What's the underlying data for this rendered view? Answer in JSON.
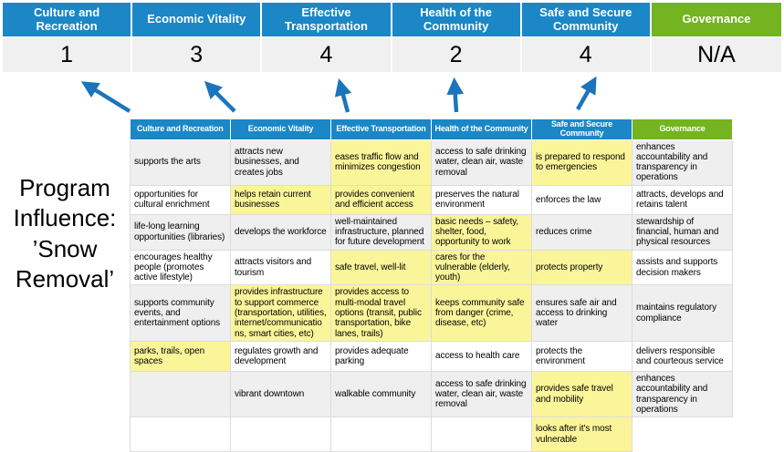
{
  "title": "Program Influence: ’Snow Removal’",
  "colors": {
    "header_blue": "#1B87C6",
    "header_green": "#73B420",
    "highlight_yellow": "#FBF59A",
    "row_alt_gray": "#EFEFEF",
    "score_row_gray": "#F0F0F0",
    "arrow_blue": "#1B75BC"
  },
  "scorecard": {
    "columns": [
      {
        "label": "Culture and Recreation",
        "score": "1"
      },
      {
        "label": "Economic Vitality",
        "score": "3"
      },
      {
        "label": "Effective Transportation",
        "score": "4"
      },
      {
        "label": "Health of the Community",
        "score": "2"
      },
      {
        "label": "Safe and Secure Community",
        "score": "4"
      },
      {
        "label": "Governance",
        "score": "N/A"
      }
    ]
  },
  "matrix": {
    "headers": [
      {
        "label": "Culture and Recreation",
        "green": false
      },
      {
        "label": "Economic Vitality",
        "green": false
      },
      {
        "label": "Effective Transportation",
        "green": false
      },
      {
        "label": "Health of the Community",
        "green": false
      },
      {
        "label": "Safe and Secure\nCommunity",
        "green": false
      },
      {
        "label": "Governance",
        "green": true
      }
    ],
    "rows": [
      [
        {
          "text": "supports the arts",
          "highlight": false
        },
        {
          "text": "attracts new businesses, and creates jobs",
          "highlight": false
        },
        {
          "text": "eases traffic flow and minimizes congestion",
          "highlight": true
        },
        {
          "text": "access to safe drinking water, clean air, waste removal",
          "highlight": false
        },
        {
          "text": "is prepared to respond to emergencies",
          "highlight": true
        },
        {
          "text": "enhances accountability and transparency in operations",
          "highlight": false
        }
      ],
      [
        {
          "text": "opportunities for cultural enrichment",
          "highlight": false
        },
        {
          "text": "helps retain current businesses",
          "highlight": true
        },
        {
          "text": "provides convenient and efficient access",
          "highlight": true
        },
        {
          "text": "preserves the natural environment",
          "highlight": false
        },
        {
          "text": "enforces the law",
          "highlight": false
        },
        {
          "text": "attracts, develops and retains talent",
          "highlight": false
        }
      ],
      [
        {
          "text": "life-long learning opportunities (libraries)",
          "highlight": false
        },
        {
          "text": "develops the workforce",
          "highlight": false
        },
        {
          "text": "well-maintained infrastructure, planned for future development",
          "highlight": false
        },
        {
          "text": "basic needs – safety, shelter, food, opportunity to work",
          "highlight": true
        },
        {
          "text": "reduces crime",
          "highlight": false
        },
        {
          "text": "stewardship of financial, human and physical resources",
          "highlight": false
        }
      ],
      [
        {
          "text": "encourages healthy people (promotes active lifestyle)",
          "highlight": false
        },
        {
          "text": "attracts visitors and tourism",
          "highlight": false
        },
        {
          "text": "safe travel, well-lit",
          "highlight": true
        },
        {
          "text": "cares for the vulnerable (elderly, youth)",
          "highlight": true
        },
        {
          "text": "protects property",
          "highlight": true
        },
        {
          "text": "assists and supports decision makers",
          "highlight": false
        }
      ],
      [
        {
          "text": "supports community events, and entertainment options",
          "highlight": false
        },
        {
          "text": "provides infrastructure to support commerce (transportation, utilities, internet/communications, smart cities, etc)",
          "highlight": true
        },
        {
          "text": "provides access to multi-modal travel options (transit, public transportation, bike lanes, trails)",
          "highlight": true
        },
        {
          "text": "keeps community safe from danger (crime, disease, etc)",
          "highlight": true
        },
        {
          "text": "ensures safe air and access to drinking water",
          "highlight": false
        },
        {
          "text": "maintains regulatory compliance",
          "highlight": false
        }
      ],
      [
        {
          "text": "parks, trails, open spaces",
          "highlight": true
        },
        {
          "text": "regulates growth and development",
          "highlight": false
        },
        {
          "text": "provides adequate parking",
          "highlight": false
        },
        {
          "text": "access to health care",
          "highlight": false
        },
        {
          "text": "protects the environment",
          "highlight": false
        },
        {
          "text": "delivers responsible and courteous service",
          "highlight": false
        }
      ],
      [
        {
          "text": "",
          "highlight": false
        },
        {
          "text": "vibrant downtown",
          "highlight": false
        },
        {
          "text": "walkable community",
          "highlight": false
        },
        {
          "text": "access to safe drinking water, clean air, waste removal",
          "highlight": false
        },
        {
          "text": "provides safe travel and mobility",
          "highlight": true
        },
        {
          "text": "enhances accountability and transparency in operations",
          "highlight": false
        }
      ],
      [
        {
          "text": "",
          "highlight": false
        },
        {
          "text": "",
          "highlight": false
        },
        {
          "text": "",
          "highlight": false
        },
        {
          "text": "",
          "highlight": false
        },
        {
          "text": "looks after it's most vulnerable",
          "highlight": true
        },
        {
          "text": "",
          "highlight": false,
          "absent": true
        }
      ]
    ]
  }
}
